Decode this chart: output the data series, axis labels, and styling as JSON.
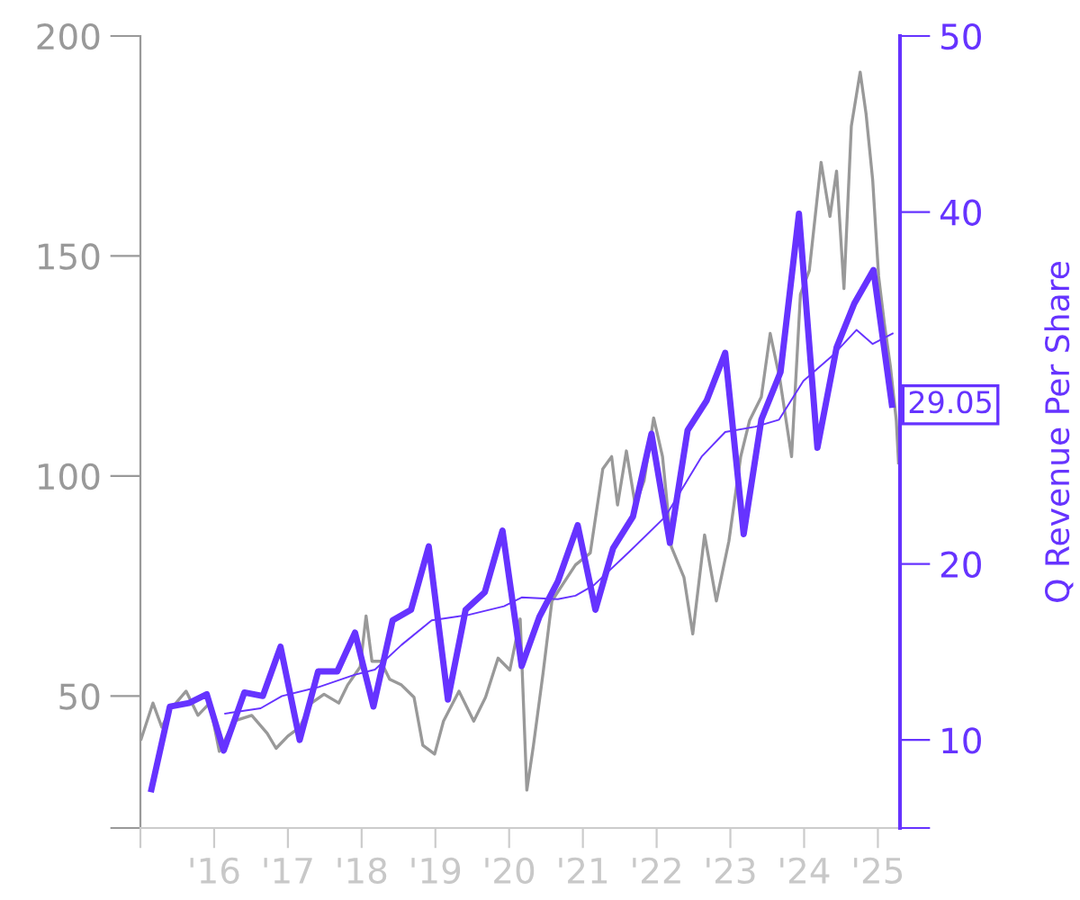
{
  "chart_data": {
    "type": "line",
    "y2label": "Q Revenue Per Share",
    "xlim": [
      2015,
      2025.3
    ],
    "xticks": [
      {
        "value": 2015,
        "label": null
      },
      {
        "value": 2016,
        "label": "'16"
      },
      {
        "value": 2017,
        "label": "'17"
      },
      {
        "value": 2018,
        "label": "'18"
      },
      {
        "value": 2019,
        "label": "'19"
      },
      {
        "value": 2020,
        "label": "'20"
      },
      {
        "value": 2021,
        "label": "'21"
      },
      {
        "value": 2022,
        "label": "'22"
      },
      {
        "value": 2023,
        "label": "'23"
      },
      {
        "value": 2024,
        "label": "'24"
      },
      {
        "value": 2025,
        "label": "'25"
      }
    ],
    "ylim": [
      20,
      200
    ],
    "yticks": [
      {
        "value": 20,
        "label": null
      },
      50,
      100,
      150,
      200
    ],
    "y2lim": [
      5,
      50
    ],
    "y2ticks": [
      {
        "value": 5,
        "label": null
      },
      10,
      20,
      40,
      50
    ],
    "grid": false,
    "legend": false,
    "series": [
      {
        "color": "#999999",
        "x": [
          2015.01,
          2015.17,
          2015.29,
          2015.41,
          2015.62,
          2015.78,
          2015.94,
          2016.07,
          2016.27,
          2016.51,
          2016.72,
          2016.84,
          2017.0,
          2017.16,
          2017.32,
          2017.49,
          2017.69,
          2017.81,
          2017.98,
          2018.06,
          2018.14,
          2018.26,
          2018.38,
          2018.54,
          2018.71,
          2018.83,
          2018.99,
          2019.11,
          2019.32,
          2019.52,
          2019.68,
          2019.85,
          2020.01,
          2020.15,
          2020.24,
          2020.33,
          2020.46,
          2020.58,
          2020.74,
          2020.9,
          2021.1,
          2021.27,
          2021.39,
          2021.47,
          2021.59,
          2021.71,
          2021.83,
          2021.96,
          2022.08,
          2022.2,
          2022.37,
          2022.49,
          2022.65,
          2022.81,
          2022.98,
          2023.14,
          2023.26,
          2023.42,
          2023.54,
          2023.67,
          2023.83,
          2023.95,
          2024.07,
          2024.23,
          2024.35,
          2024.44,
          2024.54,
          2024.64,
          2024.76,
          2024.84,
          2024.93,
          2025.01,
          2025.09,
          2025.17,
          2025.25,
          2025.28
        ],
        "values": [
          40.2,
          48.4,
          42.9,
          47.0,
          51.1,
          45.6,
          48.4,
          37.4,
          44.3,
          45.6,
          41.5,
          38.1,
          40.9,
          42.9,
          48.4,
          50.4,
          48.4,
          52.5,
          56.6,
          68.2,
          57.9,
          57.9,
          53.8,
          52.5,
          49.7,
          38.8,
          36.8,
          44.3,
          51.1,
          44.3,
          49.7,
          58.6,
          55.9,
          67.5,
          28.6,
          38.8,
          55.2,
          71.6,
          75.7,
          79.8,
          82.5,
          101.6,
          104.4,
          93.4,
          105.7,
          93.4,
          98.9,
          113.2,
          104.4,
          83.9,
          77.0,
          64.1,
          86.6,
          71.6,
          85.2,
          104.4,
          112.6,
          118.0,
          132.4,
          122.1,
          104.4,
          141.3,
          146.7,
          171.3,
          159.0,
          169.3,
          142.6,
          179.5,
          191.8,
          182.3,
          167.2,
          145.4,
          134.4,
          124.9,
          112.6,
          103.0
        ]
      },
      {
        "color": "#6633ff",
        "axis": "y2",
        "x": [
          2015.15,
          2015.4,
          2015.66,
          2015.9,
          2016.13,
          2016.41,
          2016.66,
          2016.9,
          2017.16,
          2017.41,
          2017.67,
          2017.91,
          2018.16,
          2018.42,
          2018.67,
          2018.91,
          2019.17,
          2019.41,
          2019.67,
          2019.91,
          2020.17,
          2020.41,
          2020.66,
          2020.93,
          2021.17,
          2021.41,
          2021.68,
          2021.93,
          2022.18,
          2022.42,
          2022.68,
          2022.93,
          2023.18,
          2023.42,
          2023.68,
          2023.93,
          2024.18,
          2024.44,
          2024.68,
          2024.94,
          2025.19
        ],
        "values": [
          7.2,
          11.9,
          12.1,
          12.6,
          9.4,
          12.7,
          12.5,
          15.3,
          10.0,
          13.9,
          13.9,
          16.1,
          11.9,
          16.8,
          17.4,
          21.0,
          12.3,
          17.4,
          18.4,
          21.9,
          14.2,
          17.0,
          19.0,
          22.2,
          17.4,
          20.9,
          22.7,
          27.4,
          21.2,
          27.6,
          29.3,
          32.0,
          21.7,
          28.2,
          30.9,
          39.9,
          26.6,
          32.3,
          34.8,
          36.7,
          29.05
        ],
        "value_labels": [
          null,
          null,
          null,
          null,
          null,
          null,
          null,
          null,
          null,
          null,
          null,
          null,
          null,
          null,
          null,
          null,
          null,
          null,
          null,
          null,
          null,
          null,
          null,
          null,
          null,
          null,
          null,
          null,
          null,
          null,
          null,
          null,
          null,
          null,
          null,
          null,
          null,
          null,
          null,
          null,
          "29.05"
        ]
      },
      {
        "color": "#6633ff",
        "axis": "y2",
        "x": [
          2016.15,
          2016.63,
          2016.92,
          2017.41,
          2017.9,
          2018.18,
          2018.54,
          2018.95,
          2019.44,
          2019.93,
          2020.17,
          2020.66,
          2020.9,
          2021.15,
          2021.63,
          2022.12,
          2022.61,
          2022.93,
          2023.34,
          2023.66,
          2023.99,
          2024.4,
          2024.71,
          2024.93,
          2025.2
        ],
        "values": [
          11.5,
          11.8,
          12.5,
          13.0,
          13.7,
          14.0,
          15.4,
          16.8,
          17.1,
          17.6,
          18.1,
          18.0,
          18.2,
          18.8,
          20.7,
          22.7,
          26.1,
          27.5,
          27.8,
          28.2,
          30.4,
          31.9,
          33.3,
          32.5,
          33.1
        ]
      }
    ]
  }
}
